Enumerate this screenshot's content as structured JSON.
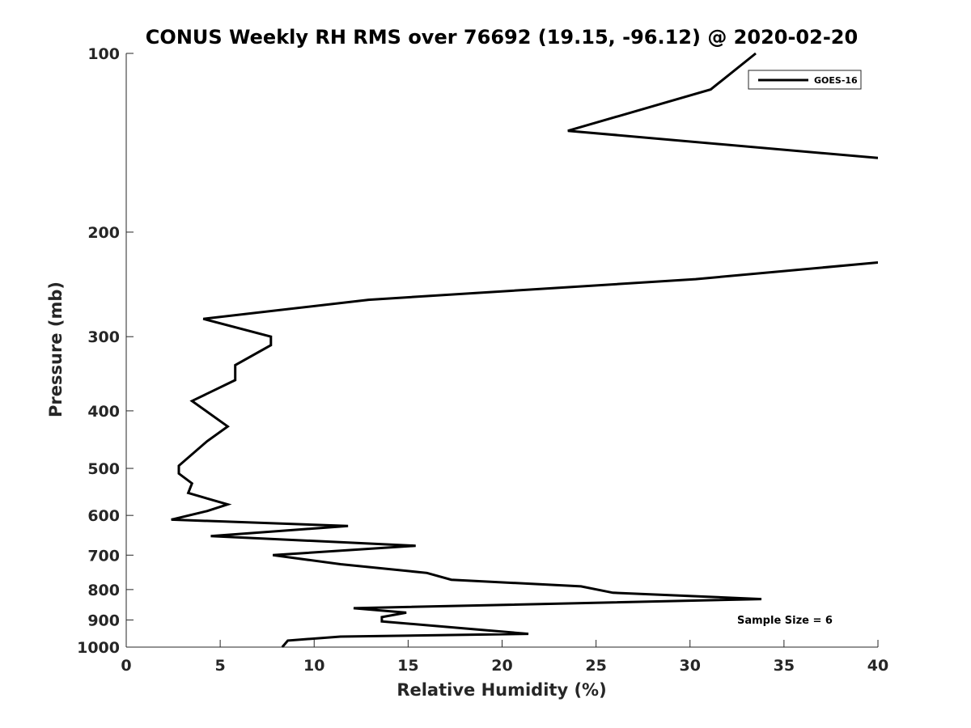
{
  "chart_data": {
    "type": "line",
    "title": "CONUS Weekly RH RMS over 76692 (19.15, -96.12) @ 2020-02-20",
    "xlabel": "Relative Humidity (%)",
    "ylabel": "Pressure (mb)",
    "xlim": [
      0,
      40
    ],
    "ylim": [
      100,
      1000
    ],
    "yscale": "log",
    "y_reversed": true,
    "xticks": [
      "0",
      "5",
      "10",
      "15",
      "20",
      "25",
      "30",
      "35",
      "40"
    ],
    "yticks": [
      "100",
      "200",
      "300",
      "400",
      "500",
      "600",
      "700",
      "800",
      "900",
      "1000"
    ],
    "legend": {
      "position": "top-right",
      "entries": [
        "GOES-16"
      ]
    },
    "annotation": "Sample Size = 6",
    "series": [
      {
        "name": "GOES-16",
        "color": "#000000",
        "x": [
          33.5,
          31.1,
          23.5,
          40.0,
          null,
          40.0,
          30.3,
          12.9,
          4.1,
          7.7,
          7.7,
          5.8,
          5.8,
          3.5,
          5.4,
          4.3,
          2.8,
          2.8,
          3.5,
          3.3,
          5.4,
          4.3,
          2.4,
          11.8,
          4.5,
          15.4,
          7.8,
          11.4,
          16.0,
          17.3,
          24.2,
          25.9,
          33.8,
          12.1,
          14.9,
          13.6,
          13.6,
          18.0,
          21.4,
          11.4,
          8.6,
          8.3
        ],
        "y": [
          100,
          115,
          135,
          150,
          null,
          225,
          240,
          260,
          280,
          300,
          310,
          335,
          355,
          385,
          425,
          450,
          495,
          510,
          530,
          550,
          575,
          590,
          610,
          625,
          650,
          675,
          700,
          725,
          750,
          770,
          790,
          810,
          830,
          860,
          875,
          890,
          905,
          930,
          950,
          960,
          975,
          1000
        ]
      }
    ]
  }
}
